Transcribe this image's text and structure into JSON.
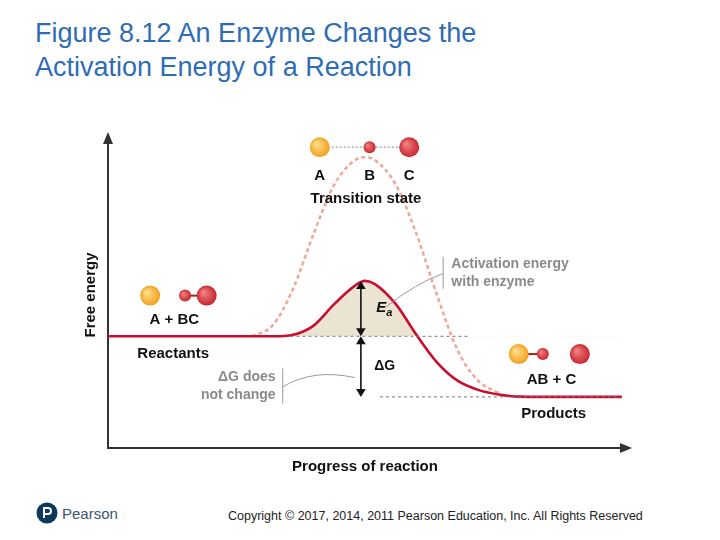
{
  "chart_data": {
    "type": "line",
    "title": "Figure 8.12 An Enzyme Changes the Activation Energy of a Reaction",
    "x_label": "Progress of reaction",
    "y_label": "Free energy",
    "x": [
      0,
      10,
      20,
      28,
      32,
      36,
      40,
      44,
      48,
      50,
      52,
      56,
      60,
      64,
      68,
      72,
      76,
      80,
      90,
      100
    ],
    "series": [
      {
        "color": "#c8102e",
        "line_style": "solid",
        "values": [
          36.5,
          36.5,
          36.5,
          36.5,
          36.5,
          37,
          40,
          47,
          53,
          54.6,
          53.5,
          47,
          37,
          28,
          22,
          19,
          17.5,
          16.8,
          16.7,
          16.7
        ]
      },
      {
        "color": "#eea99b",
        "line_style": "dashed",
        "values": [
          null,
          null,
          null,
          36.5,
          40,
          52,
          70,
          86,
          94,
          95,
          94,
          86,
          70,
          50,
          32,
          22,
          18,
          null,
          null,
          null
        ]
      }
    ],
    "xlim": [
      0,
      100
    ],
    "ylim": [
      0,
      100
    ],
    "grid": false,
    "tick_labels": false,
    "annotations": {
      "molecule_labels": [
        "A",
        "B",
        "C"
      ],
      "transition_state": "Transition state",
      "reactants_formula": "A + BC",
      "reactants": "Reactants",
      "products_formula": "AB + C",
      "products": "Products",
      "activation_note": [
        "Activation energy",
        "with enzyme"
      ],
      "ea": "Ea",
      "delta_g": "ΔG",
      "delta_g_note": [
        "ΔG does",
        "not change"
      ]
    }
  },
  "footer": {
    "logo": "Pearson",
    "copyright": "Copyright © 2017, 2014, 2011 Pearson Education, Inc. All Rights Reserved"
  }
}
